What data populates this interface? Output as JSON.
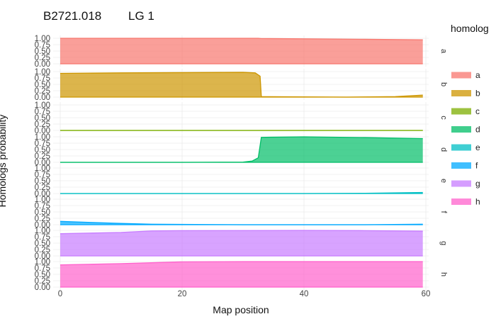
{
  "window": {
    "title": "B2721.018",
    "subtitle": "LG 1"
  },
  "chart_data": {
    "type": "area",
    "title": "B2721.018     LG 1",
    "xlabel": "Map position",
    "ylabel": "Homologs probability",
    "xlim": [
      -1.5,
      61.5
    ],
    "ylim": [
      0,
      1
    ],
    "x_ticks": [
      0,
      20,
      40,
      60
    ],
    "y_ticks": [
      "0.00",
      "0.25",
      "0.50",
      "0.75",
      "1.00"
    ],
    "facet_direction": "vertical",
    "grid": true,
    "legend": {
      "title": "homolog",
      "position": "right",
      "items": [
        "a",
        "b",
        "c",
        "d",
        "e",
        "f",
        "g",
        "h"
      ]
    },
    "series": [
      {
        "name": "a",
        "color": "#F8766D",
        "x": [
          0,
          10,
          20,
          30,
          32.5,
          33,
          40,
          50,
          59.5
        ],
        "values": [
          1.0,
          1.0,
          1.0,
          1.0,
          1.0,
          0.99,
          0.98,
          0.96,
          0.94
        ]
      },
      {
        "name": "b",
        "color": "#CD9600",
        "x": [
          0,
          10,
          20,
          30,
          32,
          32.8,
          33,
          40,
          47,
          55,
          59.5
        ],
        "values": [
          0.93,
          0.95,
          0.96,
          0.97,
          0.95,
          0.82,
          0.02,
          0.01,
          0.0,
          0.02,
          0.08
        ]
      },
      {
        "name": "c",
        "color": "#7CAE00",
        "x": [
          0,
          59.5
        ],
        "values": [
          0.0,
          0.0
        ]
      },
      {
        "name": "d",
        "color": "#00BE67",
        "x": [
          0,
          10,
          20,
          30,
          31.5,
          32.5,
          33,
          40,
          50,
          59.5
        ],
        "values": [
          0.0,
          0.0,
          0.0,
          0.01,
          0.05,
          0.18,
          0.98,
          1.0,
          0.97,
          0.93
        ]
      },
      {
        "name": "e",
        "color": "#00BFC4",
        "x": [
          0,
          20,
          40,
          50,
          59.5
        ],
        "values": [
          0.0,
          0.0,
          0.0,
          0.01,
          0.04
        ]
      },
      {
        "name": "f",
        "color": "#00A9FF",
        "x": [
          0,
          5,
          10,
          15,
          30,
          50,
          59.5
        ],
        "values": [
          0.13,
          0.09,
          0.05,
          0.02,
          0.0,
          0.0,
          0.02
        ]
      },
      {
        "name": "g",
        "color": "#C77CFF",
        "x": [
          0,
          10,
          15,
          20,
          40,
          50,
          59.5
        ],
        "values": [
          0.87,
          0.92,
          0.98,
          0.99,
          1.0,
          0.99,
          0.97
        ]
      },
      {
        "name": "h",
        "color": "#FF61CC",
        "x": [
          0,
          10,
          20,
          30,
          40,
          50,
          59.5
        ],
        "values": [
          0.87,
          0.92,
          0.99,
          1.0,
          1.0,
          1.0,
          1.0
        ]
      }
    ]
  }
}
